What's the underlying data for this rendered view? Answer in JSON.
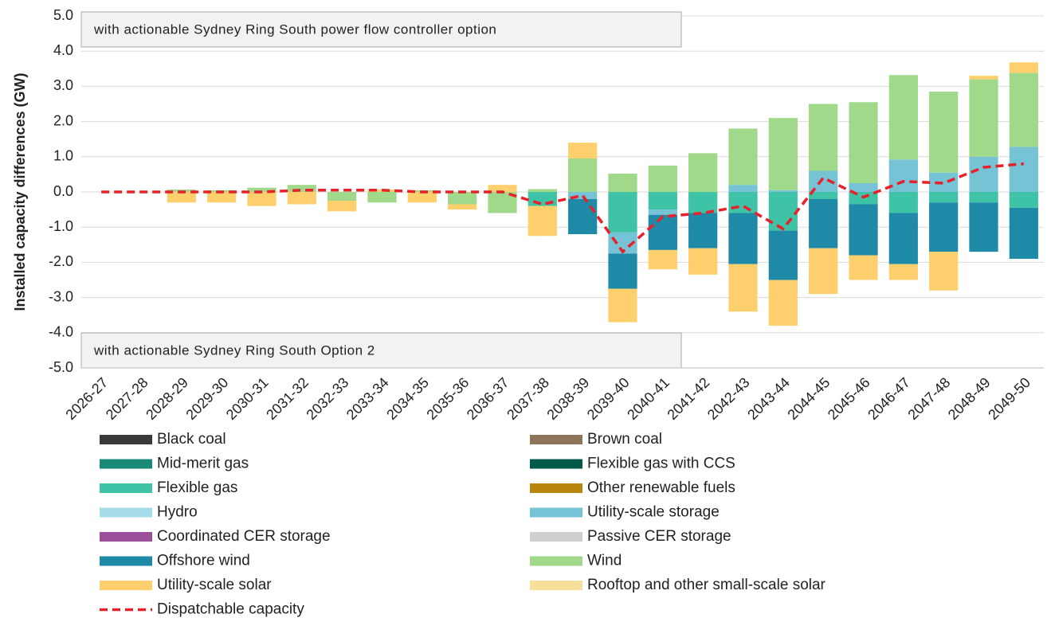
{
  "chart_data": {
    "type": "bar",
    "stacked": true,
    "y_label": "Installed capacity differences (GW)",
    "annotations": [
      "with actionable Sydney Ring South power flow controller option",
      "with actionable Sydney Ring South Option 2"
    ],
    "categories": [
      "2026-27",
      "2027-28",
      "2028-29",
      "2029-30",
      "2030-31",
      "2031-32",
      "2032-33",
      "2033-34",
      "2034-35",
      "2035-36",
      "2036-37",
      "2037-38",
      "2038-39",
      "2039-40",
      "2040-41",
      "2041-42",
      "2042-43",
      "2043-44",
      "2044-45",
      "2045-46",
      "2046-47",
      "2047-48",
      "2048-49",
      "2049-50"
    ],
    "ylim": [
      -5,
      5
    ],
    "yticks": [
      {
        "value": -5,
        "label": "-5.0"
      },
      {
        "value": -4,
        "label": "-4.0"
      },
      {
        "value": -3,
        "label": "-3.0"
      },
      {
        "value": -2,
        "label": "-2.0"
      },
      {
        "value": -1,
        "label": "-1.0"
      },
      {
        "value": 0,
        "label": "0.0"
      },
      {
        "value": 1,
        "label": "1.0"
      },
      {
        "value": 2,
        "label": "2.0"
      },
      {
        "value": 3,
        "label": "3.0"
      },
      {
        "value": 4,
        "label": "4.0"
      },
      {
        "value": 5,
        "label": "5.0"
      }
    ],
    "grid": true,
    "series": [
      {
        "name": "Black coal",
        "color": "#3a3a3a",
        "values": [
          0,
          0,
          0,
          0,
          0,
          0,
          0,
          0,
          0,
          0,
          0,
          0,
          0,
          0,
          0,
          0,
          0,
          0,
          0,
          0,
          0,
          0,
          0,
          0
        ]
      },
      {
        "name": "Brown coal",
        "color": "#8c7456",
        "values": [
          0,
          0,
          0,
          0,
          0,
          0,
          0,
          0,
          0,
          0,
          0,
          0,
          0,
          0,
          0,
          0,
          0,
          0,
          0,
          0,
          0,
          0,
          0,
          0
        ]
      },
      {
        "name": "Mid-merit gas",
        "color": "#1a8a78",
        "values": [
          0,
          0,
          0,
          0,
          0,
          0,
          0,
          0,
          0,
          0,
          0,
          0,
          0,
          0,
          0,
          0,
          0,
          0,
          0,
          0,
          0,
          0,
          0,
          0
        ]
      },
      {
        "name": "Flexible gas with CCS",
        "color": "#005a4c",
        "values": [
          0,
          0,
          0,
          0,
          0,
          0,
          0,
          0,
          0,
          0,
          0,
          0,
          0,
          0,
          0,
          0,
          0,
          0,
          0,
          0,
          0,
          0,
          0,
          0
        ]
      },
      {
        "name": "Flexible gas",
        "color": "#3ec3a6",
        "values": [
          0,
          0,
          0,
          0,
          0,
          0,
          0,
          0,
          0,
          0,
          0,
          -0.4,
          0,
          -1.15,
          -0.5,
          -0.6,
          -0.6,
          -1.1,
          -0.2,
          -0.35,
          -0.6,
          -0.3,
          -0.3,
          -0.45
        ]
      },
      {
        "name": "Other renewable fuels",
        "color": "#b8860b",
        "values": [
          0,
          0,
          0,
          0,
          0,
          0,
          0,
          0,
          0,
          0,
          0,
          0,
          0,
          0,
          0,
          0,
          0,
          0,
          0,
          0,
          0,
          0,
          0,
          0
        ]
      },
      {
        "name": "Hydro",
        "color": "#a6dcea",
        "values": [
          0,
          0,
          0,
          0,
          0,
          0,
          0,
          0,
          0,
          0,
          0,
          0,
          0,
          0,
          0,
          0,
          0,
          0,
          0,
          0,
          0,
          0,
          0,
          0
        ]
      },
      {
        "name": "Utility-scale storage",
        "color": "#75c3d5",
        "values": [
          0,
          0,
          0,
          0,
          0,
          0,
          0,
          0,
          0,
          0,
          0,
          0,
          -0.2,
          -0.6,
          -0.15,
          0,
          0.2,
          0.05,
          0.6,
          0.25,
          0.92,
          0.55,
          1.0,
          1.28
        ]
      },
      {
        "name": "Coordinated CER storage",
        "color": "#9b4f9b",
        "values": [
          0,
          0,
          0,
          0,
          0,
          0,
          0,
          0,
          0,
          0,
          0,
          0,
          0,
          0,
          0,
          0,
          0,
          0,
          0,
          0,
          0,
          0,
          0,
          0
        ]
      },
      {
        "name": "Passive CER storage",
        "color": "#cfcfcf",
        "values": [
          0,
          0,
          0,
          0,
          0,
          0,
          0,
          0,
          0,
          0,
          0,
          0,
          0,
          0,
          0,
          0,
          0,
          0,
          0,
          0,
          0,
          0,
          0,
          0
        ]
      },
      {
        "name": "Offshore wind",
        "color": "#1e8aa8",
        "values": [
          0,
          0,
          0,
          0,
          0,
          0,
          0,
          0,
          0,
          0,
          0,
          0,
          -1.0,
          -1.0,
          -1.0,
          -1.0,
          -1.45,
          -1.4,
          -1.4,
          -1.45,
          -1.45,
          -1.4,
          -1.4,
          -1.45
        ]
      },
      {
        "name": "Wind",
        "color": "#a0d98a",
        "values": [
          0,
          0,
          0.07,
          0.05,
          0.12,
          0.2,
          -0.25,
          -0.3,
          0.05,
          -0.35,
          -0.6,
          0.08,
          0.95,
          0.52,
          0.75,
          1.1,
          1.6,
          2.05,
          1.9,
          2.3,
          2.4,
          2.3,
          2.2,
          2.1
        ]
      },
      {
        "name": "Utility-scale solar",
        "color": "#fdd06d",
        "values": [
          0,
          0,
          -0.3,
          -0.3,
          -0.4,
          -0.35,
          -0.3,
          0.07,
          -0.3,
          -0.15,
          0.2,
          -0.85,
          0.45,
          -0.95,
          -0.55,
          -0.75,
          -1.35,
          -1.3,
          -1.3,
          -0.7,
          -0.45,
          -1.1,
          0.1,
          0.3
        ]
      },
      {
        "name": "Rooftop and other small-scale solar",
        "color": "#f7e09a",
        "values": [
          0,
          0,
          0,
          0,
          0,
          0,
          0,
          0,
          0,
          0,
          0,
          0,
          0,
          0,
          0,
          0,
          0,
          0,
          0,
          0,
          0,
          0,
          0,
          0
        ]
      }
    ],
    "line_series": [
      {
        "name": "Dispatchable capacity",
        "color": "#e8202a",
        "values": [
          0,
          0,
          0,
          0,
          0,
          0.05,
          0.05,
          0.05,
          0,
          0,
          0,
          -0.35,
          -0.1,
          -1.7,
          -0.7,
          -0.6,
          -0.4,
          -1.05,
          0.4,
          -0.15,
          0.3,
          0.25,
          0.7,
          0.8
        ]
      }
    ]
  }
}
